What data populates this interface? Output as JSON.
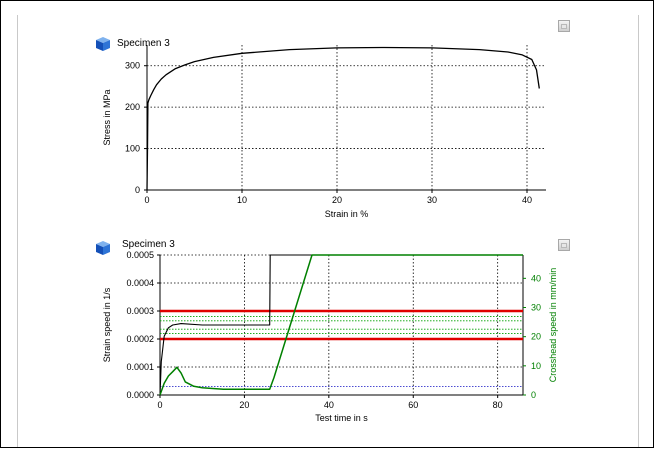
{
  "specimen_title_top": "Specimen 3",
  "specimen_title_bottom": "Specimen 3",
  "icons": {
    "specimen": "blue-cube-icon",
    "panel_button": "panel-restore-icon"
  },
  "colors": {
    "stress_curve": "#000000",
    "strain_speed": "#000000",
    "crosshead_speed": "#008000",
    "limit_lines": "#e00000",
    "tolerance_lines": "#00a000",
    "baseline": "#3333cc",
    "grid": "#000000"
  },
  "chart_data": [
    {
      "type": "line",
      "title": "",
      "xlabel": "Strain in %",
      "ylabel": "Stress in MPa",
      "xlim": [
        0,
        42
      ],
      "ylim": [
        0,
        350
      ],
      "xticks": [
        0,
        10,
        20,
        30,
        40
      ],
      "yticks": [
        0,
        100,
        200,
        300
      ],
      "grid": "dotted",
      "series": [
        {
          "x": [
            0,
            0.05,
            0.1,
            0.2,
            0.4,
            0.7,
            1,
            1.5,
            2,
            3,
            4,
            5,
            7,
            10,
            15,
            20,
            25,
            30,
            35,
            38,
            39.5,
            40.5,
            41,
            41.3
          ],
          "y": [
            0,
            100,
            210,
            218,
            228,
            242,
            254,
            268,
            278,
            293,
            302,
            310,
            320,
            330,
            339,
            343,
            344,
            343,
            339,
            333,
            326,
            315,
            290,
            245
          ]
        }
      ]
    },
    {
      "type": "line",
      "title": "",
      "xlabel": "Test time in s",
      "ylabel": "Strain speed in 1/s",
      "y2label": "Crosshead speed in mm/min",
      "xlim": [
        0,
        86
      ],
      "ylim": [
        0,
        0.0005
      ],
      "y2lim": [
        0,
        48
      ],
      "xticks": [
        0,
        20,
        40,
        60,
        80
      ],
      "yticks": [
        "0.0000",
        "0.0001",
        "0.0002",
        "0.0003",
        "0.0004",
        "0.0005"
      ],
      "y2ticks": [
        0,
        10,
        20,
        30,
        40
      ],
      "grid": "dotted",
      "reference_lines": {
        "red_strain_speed": [
          0.0002,
          0.0003
        ],
        "green_strain_speed": [
          0.00022,
          0.000235,
          0.000265,
          0.00028
        ],
        "blue_strain_speed": [
          3e-05
        ]
      },
      "series": [
        {
          "axis": "left",
          "x": [
            0,
            0.3,
            1,
            2,
            3,
            5,
            10,
            15,
            20,
            25,
            26,
            26.1,
            86
          ],
          "y": [
            0,
            0.00012,
            0.00021,
            0.00024,
            0.00025,
            0.000255,
            0.00025,
            0.00025,
            0.00025,
            0.00025,
            0.00025,
            0.0005,
            0.0005
          ]
        },
        {
          "axis": "right",
          "x": [
            0,
            1,
            2,
            3,
            4,
            5,
            6,
            8,
            10,
            15,
            20,
            26,
            27,
            36,
            86
          ],
          "y": [
            0,
            4,
            6.5,
            8,
            9.5,
            7.5,
            4.5,
            3,
            2.5,
            2,
            2,
            2,
            6,
            48,
            48
          ]
        }
      ]
    }
  ]
}
